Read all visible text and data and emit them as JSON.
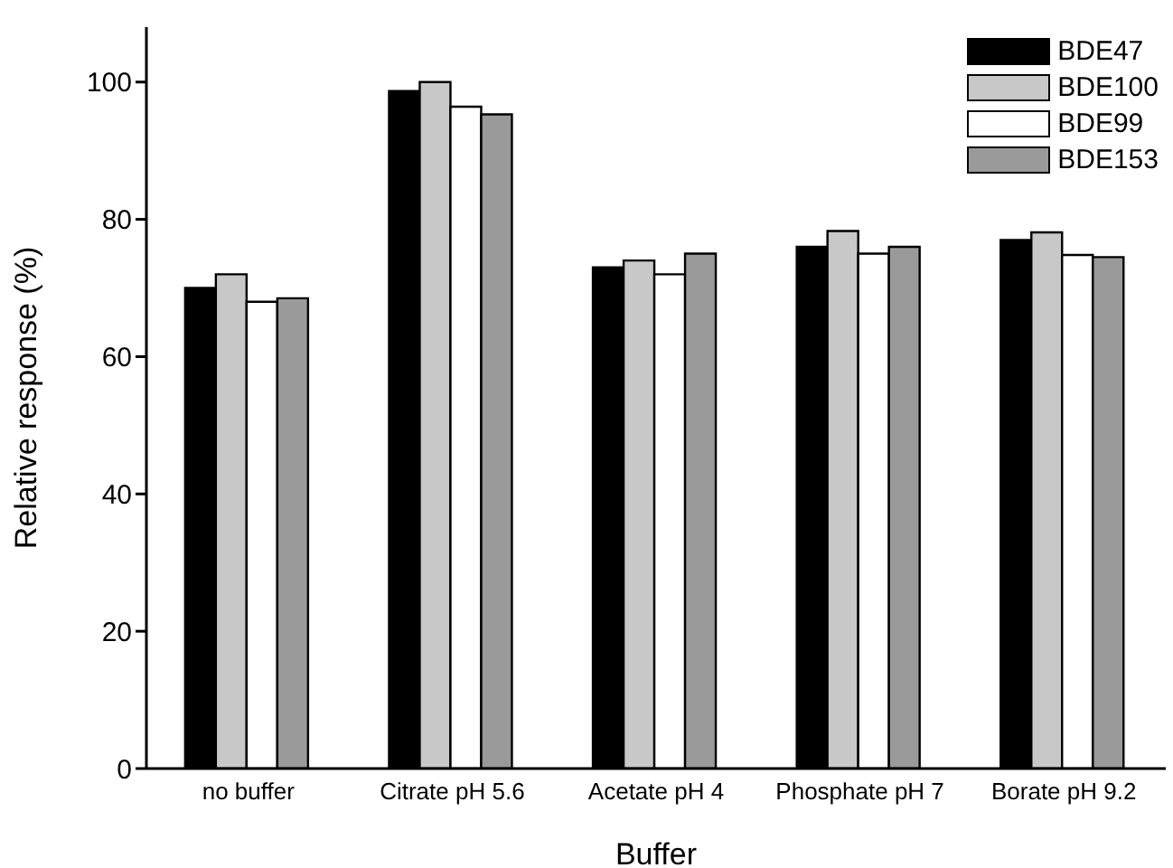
{
  "chart_data": {
    "type": "bar",
    "xlabel": "Buffer",
    "ylabel": "Relative response (%)",
    "categories": [
      "no buffer",
      "Citrate pH 5.6",
      "Acetate pH 4",
      "Phosphate pH 7",
      "Borate pH 9.2"
    ],
    "series": [
      {
        "name": "BDE47",
        "color": "#000000",
        "values": [
          70,
          98.7,
          73,
          76,
          77
        ]
      },
      {
        "name": "BDE100",
        "color": "#c8c8c8",
        "values": [
          72,
          100,
          74,
          78.3,
          78.1
        ]
      },
      {
        "name": "BDE99",
        "color": "#ffffff",
        "values": [
          68,
          96.4,
          72,
          75,
          74.8
        ]
      },
      {
        "name": "BDE153",
        "color": "#9a9a9a",
        "values": [
          68.5,
          95.3,
          75,
          76,
          74.5
        ]
      }
    ],
    "ylim": [
      0,
      108
    ],
    "yticks": [
      0,
      20,
      40,
      60,
      80,
      100
    ],
    "grid": false,
    "legend": "top right"
  }
}
